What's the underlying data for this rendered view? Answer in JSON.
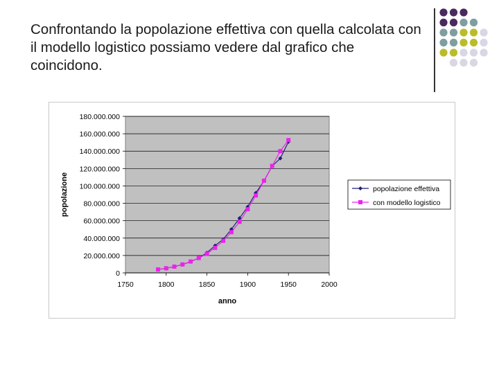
{
  "slide": {
    "title": "Confrontando la popolazione effettiva con quella calcolata con il modello logistico possiamo vedere dal grafico che coincidono."
  },
  "decoration": {
    "dot_colors": [
      "#4a2a5e",
      "#7f9ea0",
      "#b9bd2c",
      "#d8d8e4"
    ]
  },
  "chart_data": {
    "type": "line",
    "xlabel": "anno",
    "ylabel": "popolazione",
    "xlim": [
      1750,
      2000
    ],
    "ylim": [
      0,
      180000000
    ],
    "xticks": [
      1750,
      1800,
      1850,
      1900,
      1950,
      2000
    ],
    "xtick_labels": [
      "1750",
      "1800",
      "1850",
      "1900",
      "1950",
      "2000"
    ],
    "yticks": [
      0,
      20000000,
      40000000,
      60000000,
      80000000,
      100000000,
      120000000,
      140000000,
      160000000,
      180000000
    ],
    "ytick_labels": [
      "0",
      "20.000.000",
      "40.000.000",
      "60.000.000",
      "80.000.000",
      "100.000.000",
      "120.000.000",
      "140.000.000",
      "160.000.000",
      "180.000.000"
    ],
    "grid": true,
    "legend_position": "right",
    "series": [
      {
        "name": "popolazione effettiva",
        "color": "#1f1f7a",
        "marker": "diamond",
        "x": [
          1790,
          1800,
          1810,
          1820,
          1830,
          1840,
          1850,
          1860,
          1870,
          1880,
          1890,
          1900,
          1910,
          1920,
          1930,
          1940,
          1950
        ],
        "y": [
          3900000,
          5300000,
          7200000,
          9600000,
          12900000,
          17100000,
          23200000,
          31400000,
          38600000,
          50200000,
          62900000,
          76000000,
          92000000,
          105700000,
          122800000,
          131700000,
          150700000
        ]
      },
      {
        "name": "con modello logistico",
        "color": "#ee22ee",
        "marker": "square",
        "x": [
          1790,
          1800,
          1810,
          1820,
          1830,
          1840,
          1850,
          1860,
          1870,
          1880,
          1890,
          1900,
          1910,
          1920,
          1930,
          1940,
          1950
        ],
        "y": [
          3900000,
          5300000,
          7200000,
          9700000,
          13100000,
          17100000,
          22000000,
          28800000,
          36900000,
          46800000,
          58700000,
          73200000,
          89000000,
          106000000,
          123000000,
          140000000,
          152700000
        ]
      }
    ]
  }
}
